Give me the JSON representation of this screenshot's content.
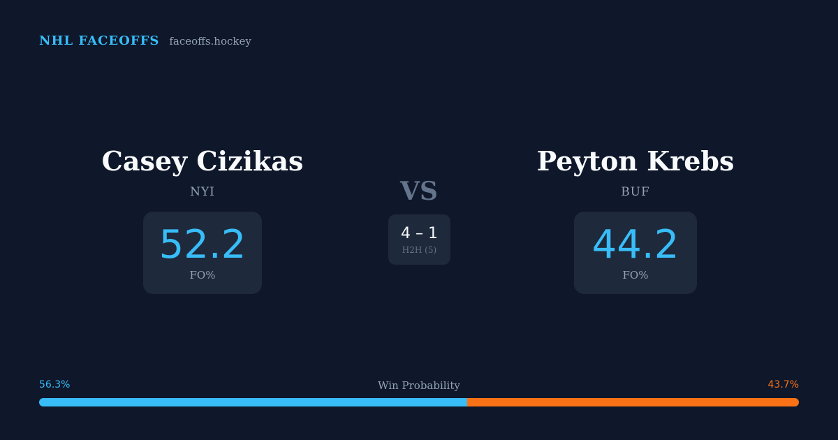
{
  "brand": {
    "title": "NHL FACEOFFS",
    "site": "faceoffs.hockey"
  },
  "players": {
    "left": {
      "name": "Casey Cizikas",
      "team": "NYI",
      "stat_value": "52.2",
      "stat_label": "FO%"
    },
    "right": {
      "name": "Peyton Krebs",
      "team": "BUF",
      "stat_value": "44.2",
      "stat_label": "FO%"
    }
  },
  "matchup": {
    "vs_label": "VS",
    "h2h_record": "4 – 1",
    "h2h_label": "H2H (5)"
  },
  "win_probability": {
    "title": "Win Probability",
    "left_label": "56.3%",
    "right_label": "43.7%",
    "left_fraction": 0.563,
    "right_fraction": 0.437,
    "left_color": "#38bdf8",
    "right_color": "#f97316"
  },
  "colors": {
    "background": "#0f172a",
    "accent": "#38bdf8",
    "opponent": "#f97316",
    "card": "#1e293b"
  }
}
